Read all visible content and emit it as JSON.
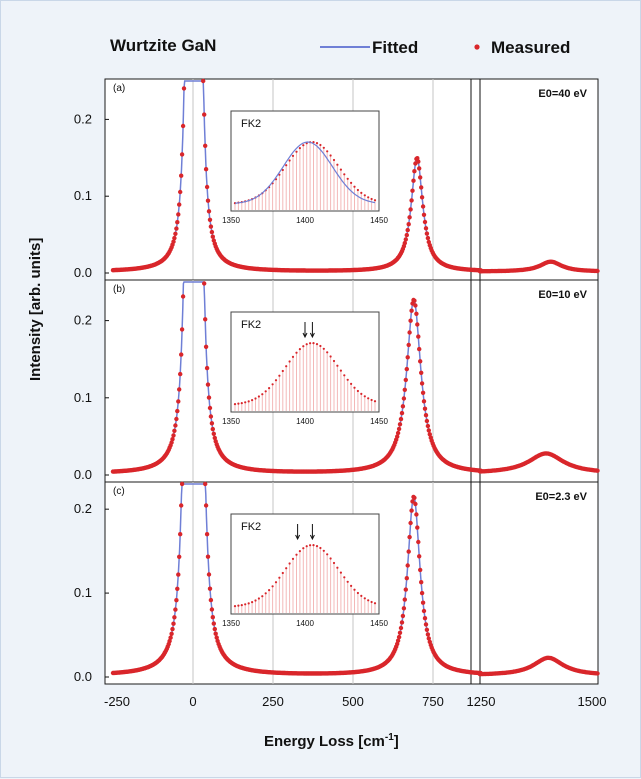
{
  "chart_data": [
    {
      "type": "scatter",
      "panel": "(a)",
      "annotation": "E0=40 eV",
      "x_segments": [
        [
          -250,
          900
        ],
        [
          1250,
          1500
        ]
      ],
      "ylim": [
        0,
        0.25
      ],
      "yticks": [
        "0.0",
        "0.1",
        "0.2"
      ],
      "series": [
        {
          "name": "Fitted",
          "style": "line",
          "color": "#6f7fd6"
        },
        {
          "name": "Measured",
          "style": "markers",
          "color": "#d9262b"
        }
      ],
      "peaks": [
        {
          "center": -15,
          "height": 0.46,
          "width": 12
        },
        {
          "center": 20,
          "height": 0.46,
          "width": 12
        },
        {
          "center": 700,
          "height": 0.148,
          "width": 22
        },
        {
          "center": 1400,
          "height": 0.013,
          "width": 28
        }
      ],
      "inset": {
        "label": "FK2",
        "x_ticks": [
          "1350",
          "1400",
          "1450"
        ],
        "xlim": [
          1350,
          1450
        ],
        "peak_x": 1405,
        "arrows": []
      }
    },
    {
      "type": "scatter",
      "panel": "(b)",
      "annotation": "E0=10 eV",
      "x_segments": [
        [
          -250,
          900
        ],
        [
          1250,
          1500
        ]
      ],
      "ylim": [
        0,
        0.25
      ],
      "yticks": [
        "0.0",
        "0.1",
        "0.2"
      ],
      "series": [
        {
          "name": "Fitted",
          "style": "line",
          "color": "#6f7fd6"
        },
        {
          "name": "Measured",
          "style": "markers",
          "color": "#d9262b"
        }
      ],
      "peaks": [
        {
          "center": -15,
          "height": 0.5,
          "width": 13
        },
        {
          "center": 20,
          "height": 0.5,
          "width": 13
        },
        {
          "center": 690,
          "height": 0.225,
          "width": 27
        },
        {
          "center": 1390,
          "height": 0.026,
          "width": 45
        }
      ],
      "inset": {
        "label": "FK2",
        "x_ticks": [
          "1350",
          "1400",
          "1450"
        ],
        "xlim": [
          1350,
          1450
        ],
        "peak_x": 1403,
        "arrows": [
          1400,
          1405
        ]
      }
    },
    {
      "type": "scatter",
      "panel": "(c)",
      "annotation": "E0=2.3 eV",
      "x_segments": [
        [
          -250,
          900
        ],
        [
          1250,
          1500
        ]
      ],
      "ylim": [
        0,
        0.23
      ],
      "yticks": [
        "0.0",
        "0.1",
        "0.2"
      ],
      "series": [
        {
          "name": "Fitted",
          "style": "line",
          "color": "#6f7fd6"
        },
        {
          "name": "Measured",
          "style": "markers",
          "color": "#d9262b"
        }
      ],
      "peaks": [
        {
          "center": -18,
          "height": 0.5,
          "width": 14
        },
        {
          "center": 22,
          "height": 0.5,
          "width": 14
        },
        {
          "center": 690,
          "height": 0.213,
          "width": 24
        },
        {
          "center": 1395,
          "height": 0.021,
          "width": 38
        }
      ],
      "inset": {
        "label": "FK2",
        "x_ticks": [
          "1350",
          "1400",
          "1450"
        ],
        "xlim": [
          1350,
          1450
        ],
        "peak_x": 1395,
        "arrows": [
          1395,
          1405
        ]
      }
    }
  ],
  "figure": {
    "title": "Wurtzite GaN",
    "legend": {
      "fitted": "Fitted",
      "measured": "Measured"
    },
    "ylabel": "Intensity [arb. units]",
    "xlabel": "Energy Loss [cm",
    "xlabel_exp": "-1",
    "xlabel_end": "]",
    "xticks": [
      "-250",
      "0",
      "250",
      "500",
      "750",
      "1250",
      "1500"
    ]
  },
  "colors": {
    "fitted": "#6f7fd6",
    "measured": "#d9262b",
    "grid": "#c6c6c6",
    "inset_bar": "#f3b8b8"
  }
}
